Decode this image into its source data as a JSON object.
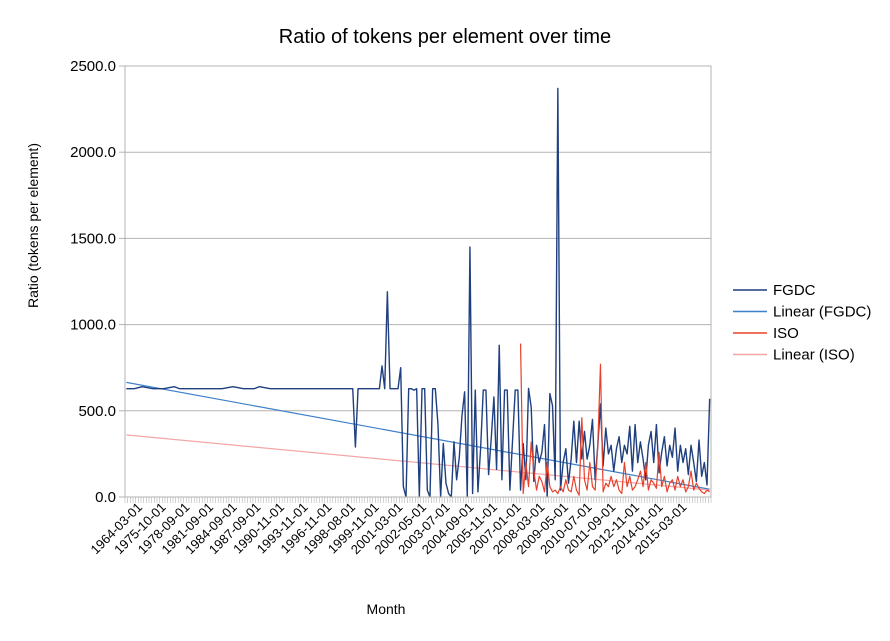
{
  "chart_data": {
    "type": "line",
    "title": "Ratio of tokens per element over time",
    "xlabel": "Month",
    "ylabel": "Ratio (tokens per element)",
    "ylim": [
      0,
      2500
    ],
    "y_ticks": [
      "0.0",
      "500.0",
      "1000.0",
      "1500.0",
      "2000.0",
      "2500.0"
    ],
    "grid": true,
    "legend_position": "right",
    "x_tick_labels": [
      "1964-03-01",
      "1975-10-01",
      "1978-09-01",
      "1981-09-01",
      "1984-09-01",
      "1987-09-01",
      "1990-11-01",
      "1993-11-01",
      "1996-11-01",
      "1998-08-01",
      "1999-11-01",
      "2001-03-01",
      "2002-05-01",
      "2003-07-01",
      "2004-09-01",
      "2005-11-01",
      "2007-01-01",
      "2008-03-01",
      "2009-05-01",
      "2010-07-01",
      "2011-09-01",
      "2012-11-01",
      "2014-01-01",
      "2015-03-01"
    ],
    "num_categories": 220,
    "series": [
      {
        "name": "FGDC",
        "color": "#1f3f7f",
        "points": [
          [
            0,
            628
          ],
          [
            3,
            628
          ],
          [
            6,
            640
          ],
          [
            10,
            628
          ],
          [
            14,
            628
          ],
          [
            18,
            640
          ],
          [
            20,
            628
          ],
          [
            24,
            628
          ],
          [
            28,
            628
          ],
          [
            32,
            628
          ],
          [
            36,
            628
          ],
          [
            40,
            640
          ],
          [
            44,
            628
          ],
          [
            48,
            628
          ],
          [
            50,
            640
          ],
          [
            54,
            628
          ],
          [
            58,
            628
          ],
          [
            62,
            628
          ],
          [
            66,
            628
          ],
          [
            70,
            628
          ],
          [
            74,
            628
          ],
          [
            78,
            628
          ],
          [
            82,
            628
          ],
          [
            85,
            628
          ],
          [
            86,
            290
          ],
          [
            87,
            628
          ],
          [
            90,
            628
          ],
          [
            93,
            628
          ],
          [
            95,
            628
          ],
          [
            96,
            760
          ],
          [
            97,
            628
          ],
          [
            98,
            1190
          ],
          [
            99,
            628
          ],
          [
            101,
            628
          ],
          [
            102,
            628
          ],
          [
            103,
            750
          ],
          [
            104,
            60
          ],
          [
            105,
            0
          ],
          [
            106,
            628
          ],
          [
            107,
            628
          ],
          [
            108,
            620
          ],
          [
            109,
            628
          ],
          [
            110,
            0
          ],
          [
            111,
            628
          ],
          [
            112,
            628
          ],
          [
            113,
            40
          ],
          [
            114,
            0
          ],
          [
            115,
            628
          ],
          [
            116,
            628
          ],
          [
            117,
            420
          ],
          [
            118,
            0
          ],
          [
            119,
            310
          ],
          [
            120,
            80
          ],
          [
            121,
            20
          ],
          [
            122,
            0
          ],
          [
            123,
            320
          ],
          [
            124,
            100
          ],
          [
            125,
            230
          ],
          [
            126,
            470
          ],
          [
            127,
            610
          ],
          [
            128,
            0
          ],
          [
            129,
            1450
          ],
          [
            130,
            20
          ],
          [
            131,
            620
          ],
          [
            132,
            30
          ],
          [
            133,
            280
          ],
          [
            134,
            620
          ],
          [
            135,
            620
          ],
          [
            136,
            130
          ],
          [
            137,
            340
          ],
          [
            138,
            580
          ],
          [
            139,
            160
          ],
          [
            140,
            880
          ],
          [
            141,
            100
          ],
          [
            142,
            620
          ],
          [
            143,
            620
          ],
          [
            144,
            40
          ],
          [
            145,
            330
          ],
          [
            146,
            620
          ],
          [
            147,
            620
          ],
          [
            148,
            40
          ],
          [
            149,
            310
          ],
          [
            150,
            100
          ],
          [
            151,
            630
          ],
          [
            152,
            520
          ],
          [
            153,
            90
          ],
          [
            154,
            300
          ],
          [
            155,
            200
          ],
          [
            156,
            260
          ],
          [
            157,
            420
          ],
          [
            158,
            0
          ],
          [
            159,
            600
          ],
          [
            160,
            530
          ],
          [
            161,
            100
          ],
          [
            162,
            2370
          ],
          [
            163,
            40
          ],
          [
            164,
            200
          ],
          [
            165,
            280
          ],
          [
            166,
            80
          ],
          [
            167,
            220
          ],
          [
            168,
            440
          ],
          [
            169,
            200
          ],
          [
            170,
            440
          ],
          [
            171,
            220
          ],
          [
            172,
            380
          ],
          [
            173,
            220
          ],
          [
            174,
            300
          ],
          [
            175,
            450
          ],
          [
            176,
            100
          ],
          [
            177,
            300
          ],
          [
            178,
            540
          ],
          [
            179,
            180
          ],
          [
            180,
            400
          ],
          [
            181,
            250
          ],
          [
            182,
            300
          ],
          [
            183,
            150
          ],
          [
            184,
            280
          ],
          [
            185,
            350
          ],
          [
            186,
            200
          ],
          [
            187,
            300
          ],
          [
            188,
            250
          ],
          [
            189,
            410
          ],
          [
            190,
            150
          ],
          [
            191,
            420
          ],
          [
            192,
            200
          ],
          [
            193,
            320
          ],
          [
            194,
            220
          ],
          [
            195,
            100
          ],
          [
            196,
            300
          ],
          [
            197,
            380
          ],
          [
            198,
            200
          ],
          [
            199,
            420
          ],
          [
            200,
            140
          ],
          [
            201,
            260
          ],
          [
            202,
            350
          ],
          [
            203,
            180
          ],
          [
            204,
            300
          ],
          [
            205,
            230
          ],
          [
            206,
            400
          ],
          [
            207,
            150
          ],
          [
            208,
            300
          ],
          [
            209,
            200
          ],
          [
            210,
            280
          ],
          [
            211,
            130
          ],
          [
            212,
            300
          ],
          [
            213,
            200
          ],
          [
            214,
            90
          ],
          [
            215,
            330
          ],
          [
            216,
            120
          ],
          [
            217,
            200
          ],
          [
            218,
            70
          ],
          [
            219,
            570
          ]
        ]
      },
      {
        "name": "Linear (FGDC)",
        "color": "#3d7fc9",
        "points": [
          [
            0,
            665
          ],
          [
            219,
            45
          ]
        ]
      },
      {
        "name": "ISO",
        "color": "#e8402a",
        "points": [
          [
            148,
            890
          ],
          [
            149,
            20
          ],
          [
            150,
            200
          ],
          [
            151,
            60
          ],
          [
            152,
            320
          ],
          [
            153,
            150
          ],
          [
            154,
            40
          ],
          [
            155,
            120
          ],
          [
            156,
            90
          ],
          [
            157,
            30
          ],
          [
            158,
            200
          ],
          [
            159,
            60
          ],
          [
            160,
            30
          ],
          [
            161,
            40
          ],
          [
            162,
            20
          ],
          [
            163,
            60
          ],
          [
            164,
            30
          ],
          [
            165,
            100
          ],
          [
            166,
            40
          ],
          [
            167,
            30
          ],
          [
            168,
            120
          ],
          [
            169,
            40
          ],
          [
            170,
            10
          ],
          [
            171,
            460
          ],
          [
            172,
            100
          ],
          [
            173,
            40
          ],
          [
            174,
            200
          ],
          [
            175,
            60
          ],
          [
            176,
            40
          ],
          [
            177,
            300
          ],
          [
            178,
            770
          ],
          [
            179,
            30
          ],
          [
            180,
            80
          ],
          [
            181,
            60
          ],
          [
            182,
            120
          ],
          [
            183,
            60
          ],
          [
            184,
            100
          ],
          [
            185,
            40
          ],
          [
            186,
            20
          ],
          [
            187,
            200
          ],
          [
            188,
            60
          ],
          [
            189,
            120
          ],
          [
            190,
            40
          ],
          [
            191,
            60
          ],
          [
            192,
            100
          ],
          [
            193,
            150
          ],
          [
            194,
            60
          ],
          [
            195,
            200
          ],
          [
            196,
            40
          ],
          [
            197,
            100
          ],
          [
            198,
            80
          ],
          [
            199,
            50
          ],
          [
            200,
            260
          ],
          [
            201,
            60
          ],
          [
            202,
            120
          ],
          [
            203,
            30
          ],
          [
            204,
            80
          ],
          [
            205,
            100
          ],
          [
            206,
            40
          ],
          [
            207,
            120
          ],
          [
            208,
            60
          ],
          [
            209,
            100
          ],
          [
            210,
            30
          ],
          [
            211,
            60
          ],
          [
            212,
            150
          ],
          [
            213,
            40
          ],
          [
            214,
            80
          ],
          [
            215,
            50
          ],
          [
            216,
            30
          ],
          [
            217,
            20
          ],
          [
            218,
            40
          ],
          [
            219,
            30
          ]
        ]
      },
      {
        "name": "Linear (ISO)",
        "color": "#f4a6a6",
        "points": [
          [
            0,
            360
          ],
          [
            219,
            40
          ]
        ]
      }
    ]
  }
}
